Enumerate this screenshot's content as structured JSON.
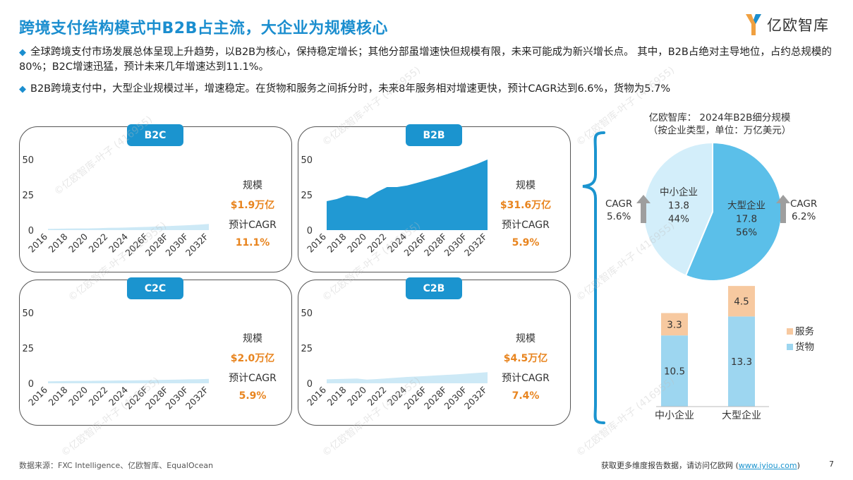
{
  "header": {
    "title": "跨境支付结构模式中B2B占主流，大企业为规模核心",
    "logo_text": "亿欧智库"
  },
  "bullets": [
    "全球跨境支付市场发展总体呈现上升趋势，以B2B为核心，保持稳定增长；其他分部虽增速快但规模有限，未来可能成为新兴增长点。 其中，B2B占绝对主导地位，占约总规模的80%；B2C增速迅猛，预计未来几年增速达到11.1%。",
    "B2B跨境支付中，大型企业规模过半，增速稳定。在货物和服务之间拆分时，未来8年服务相对增速更快，预计CAGR达到6.6%，货物为5.7%"
  ],
  "bullet_mark": "◆",
  "watermark": "©亿欧智库-叶子 (416955)",
  "colors": {
    "accent": "#1b8ecf",
    "orange": "#e8841e",
    "area_dark": "#2199d3",
    "area_light": "#cde9f6",
    "goods": "#9dd6f0",
    "services": "#f7c9a0",
    "pie_large": "#5bbfe9",
    "pie_small": "#d3eefa"
  },
  "chart_data": [
    {
      "type": "area",
      "name": "B2C",
      "x": [
        "2016",
        "2017",
        "2018",
        "2019",
        "2020",
        "2021",
        "2022",
        "2023",
        "2024",
        "2025F",
        "2026F",
        "2027F",
        "2028F",
        "2029F",
        "2030F",
        "2031F",
        "2032F"
      ],
      "x_ticks": [
        "2016",
        "2018",
        "2020",
        "2022",
        "2024",
        "2026F",
        "2028F",
        "2030F",
        "2032F"
      ],
      "y": [
        0.9,
        1.0,
        1.1,
        1.2,
        1.2,
        1.4,
        1.6,
        1.7,
        1.9,
        2.1,
        2.3,
        2.6,
        2.9,
        3.2,
        3.5,
        3.9,
        4.4
      ],
      "ylim": [
        0,
        50
      ],
      "y_ticks": [
        0,
        25,
        50
      ],
      "labels": {
        "scale_label": "规模",
        "scale_value": "$1.9万亿",
        "cagr_label": "预计CAGR",
        "cagr_value": "11.1%"
      }
    },
    {
      "type": "area",
      "name": "B2B",
      "x": [
        "2016",
        "2017",
        "2018",
        "2019",
        "2020",
        "2021",
        "2022",
        "2023",
        "2024",
        "2025F",
        "2026F",
        "2027F",
        "2028F",
        "2029F",
        "2030F",
        "2031F",
        "2032F"
      ],
      "x_ticks": [
        "2016",
        "2018",
        "2020",
        "2022",
        "2024",
        "2026F",
        "2028F",
        "2030F",
        "2032F"
      ],
      "y": [
        20.5,
        22.0,
        24.5,
        24.0,
        22.5,
        27.0,
        30.5,
        30.5,
        31.6,
        33.5,
        35.5,
        37.5,
        39.7,
        42.0,
        44.5,
        47.0,
        50.0
      ],
      "ylim": [
        0,
        50
      ],
      "y_ticks": [
        0,
        25,
        50
      ],
      "labels": {
        "scale_label": "规模",
        "scale_value": "$31.6万亿",
        "cagr_label": "预计CAGR",
        "cagr_value": "5.9%"
      }
    },
    {
      "type": "area",
      "name": "C2C",
      "x": [
        "2016",
        "2017",
        "2018",
        "2019",
        "2020",
        "2021",
        "2022",
        "2023",
        "2024",
        "2025F",
        "2026F",
        "2027F",
        "2028F",
        "2029F",
        "2030F",
        "2031F",
        "2032F"
      ],
      "x_ticks": [
        "2016",
        "2018",
        "2020",
        "2022",
        "2024",
        "2026F",
        "2028F",
        "2030F",
        "2032F"
      ],
      "y": [
        1.4,
        1.5,
        1.6,
        1.7,
        1.7,
        1.8,
        1.9,
        2.0,
        2.0,
        2.1,
        2.2,
        2.4,
        2.5,
        2.6,
        2.8,
        2.9,
        3.1
      ],
      "ylim": [
        0,
        50
      ],
      "y_ticks": [
        0,
        25,
        50
      ],
      "labels": {
        "scale_label": "规模",
        "scale_value": "$2.0万亿",
        "cagr_label": "预计CAGR",
        "cagr_value": "5.9%"
      }
    },
    {
      "type": "area",
      "name": "C2B",
      "x": [
        "2016",
        "2017",
        "2018",
        "2019",
        "2020",
        "2021",
        "2022",
        "2023",
        "2024",
        "2025F",
        "2026F",
        "2027F",
        "2028F",
        "2029F",
        "2030F",
        "2031F",
        "2032F"
      ],
      "x_ticks": [
        "2016",
        "2018",
        "2020",
        "2022",
        "2024",
        "2026F",
        "2028F",
        "2030F",
        "2032F"
      ],
      "y": [
        2.8,
        3.0,
        3.2,
        3.4,
        2.6,
        3.0,
        3.5,
        4.0,
        4.5,
        4.8,
        5.2,
        5.6,
        6.0,
        6.4,
        6.9,
        7.4,
        7.9
      ],
      "ylim": [
        0,
        50
      ],
      "y_ticks": [
        0,
        25,
        50
      ],
      "labels": {
        "scale_label": "规模",
        "scale_value": "$4.5万亿",
        "cagr_label": "预计CAGR",
        "cagr_value": "7.4%"
      }
    },
    {
      "type": "pie",
      "title_lines": [
        "亿欧智库：  2024年B2B细分规模",
        "（按企业类型，单位：万亿美元）"
      ],
      "slices": [
        {
          "name": "大型企业",
          "value": 17.8,
          "percent": "56%",
          "cagr_label": "CAGR",
          "cagr": "6.2%"
        },
        {
          "name": "中小企业",
          "value": 13.8,
          "percent": "44%",
          "cagr_label": "CAGR",
          "cagr": "5.6%"
        }
      ]
    },
    {
      "type": "bar",
      "stacked": true,
      "categories": [
        "中小企业",
        "大型企业"
      ],
      "series": [
        {
          "name": "货物",
          "values": [
            10.5,
            13.3
          ]
        },
        {
          "name": "服务",
          "values": [
            3.3,
            4.5
          ]
        }
      ],
      "legend_order": [
        "服务",
        "货物"
      ]
    }
  ],
  "footer": {
    "source": "数据来源：FXC Intelligence、亿欧智库、EqualOcean",
    "cta_prefix": "获取更多维度报告数据，请访问亿欧网 (",
    "cta_link": "www.iyiou.com",
    "cta_suffix": ")",
    "page_number": "7"
  }
}
